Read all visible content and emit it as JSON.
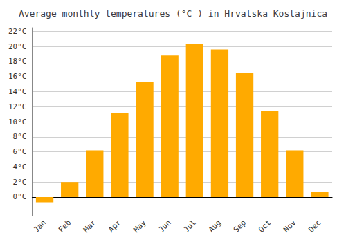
{
  "chart_data": {
    "type": "bar",
    "title": "Average monthly temperatures (°C ) in Hrvatska Kostajnica",
    "categories": [
      "Jan",
      "Feb",
      "Mar",
      "Apr",
      "May",
      "Jun",
      "Jul",
      "Aug",
      "Sep",
      "Oct",
      "Nov",
      "Dec"
    ],
    "values": [
      -0.7,
      2.0,
      6.2,
      11.2,
      15.3,
      18.8,
      20.3,
      19.6,
      16.5,
      11.4,
      6.2,
      0.7
    ],
    "color": "#FFAA00",
    "ylim": [
      -2.5,
      22.5
    ],
    "yticks": [
      {
        "value": 0,
        "label": "0°C"
      },
      {
        "value": 2,
        "label": "2°C"
      },
      {
        "value": 4,
        "label": "4°C"
      },
      {
        "value": 6,
        "label": "6°C"
      },
      {
        "value": 8,
        "label": "8°C"
      },
      {
        "value": 10,
        "label": "10°C"
      },
      {
        "value": 12,
        "label": "12°C"
      },
      {
        "value": 14,
        "label": "14°C"
      },
      {
        "value": 16,
        "label": "16°C"
      },
      {
        "value": 18,
        "label": "18°C"
      },
      {
        "value": 20,
        "label": "20°C"
      },
      {
        "value": 22,
        "label": "22°C"
      }
    ],
    "grid": true
  }
}
